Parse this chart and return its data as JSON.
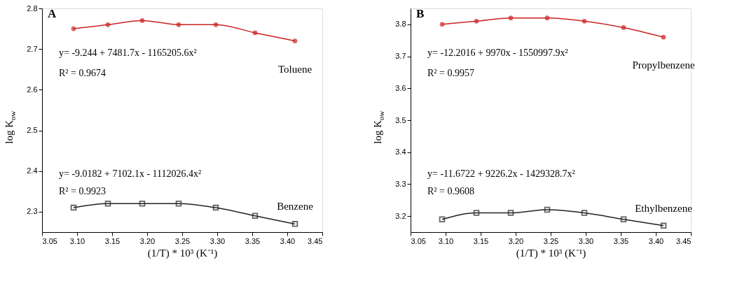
{
  "chart_data": [
    {
      "type": "line",
      "title": "A",
      "xlabel": "(1/T) * 10³ (K⁻¹)",
      "ylabel": "log K$_{ow}$",
      "x": [
        3.095,
        3.144,
        3.193,
        3.245,
        3.298,
        3.354,
        3.411
      ],
      "series": [
        {
          "name": "Toluene",
          "color": "#cc2222",
          "marker": "circle",
          "values": [
            2.75,
            2.76,
            2.77,
            2.76,
            2.76,
            2.74,
            2.72
          ]
        },
        {
          "name": "Benzene",
          "color": "#222222",
          "marker": "square",
          "values": [
            2.31,
            2.32,
            2.32,
            2.32,
            2.31,
            2.29,
            2.27
          ]
        }
      ],
      "xlim": [
        3.05,
        3.45
      ],
      "xticks": [
        3.05,
        {
          "value": 3.1,
          "label": "3.10"
        },
        3.15,
        {
          "value": 3.2,
          "label": "3.20"
        },
        3.25,
        {
          "value": 3.3,
          "label": "3.30"
        },
        3.35,
        {
          "value": 3.4,
          "label": "3.40"
        },
        3.45
      ],
      "ylim": [
        2.25,
        2.8
      ],
      "yticks": [
        2.3,
        2.4,
        2.5,
        2.6,
        2.7,
        2.8
      ],
      "annotations": [
        "y= -9.244 + 7481.7x - 1165205.6x²",
        "R² = 0.9674",
        "y= -9.0182 + 7102.1x - 1112026.4x²",
        "R² = 0.9923"
      ],
      "grid": false,
      "legend": false
    },
    {
      "type": "line",
      "title": "B",
      "xlabel": "(1/T) * 10³ (K⁻¹)",
      "ylabel": "log K$_{ow}$",
      "x": [
        3.095,
        3.144,
        3.193,
        3.245,
        3.298,
        3.354,
        3.411
      ],
      "series": [
        {
          "name": "Propylbenzene",
          "color": "#cc2222",
          "marker": "circle",
          "values": [
            3.8,
            3.81,
            3.82,
            3.82,
            3.81,
            3.79,
            3.76
          ]
        },
        {
          "name": "Ethylbenzene",
          "color": "#222222",
          "marker": "square",
          "values": [
            3.19,
            3.21,
            3.21,
            3.22,
            3.21,
            3.19,
            3.17
          ]
        }
      ],
      "xlim": [
        3.05,
        3.45
      ],
      "xticks": [
        3.05,
        {
          "value": 3.1,
          "label": "3.10"
        },
        3.15,
        {
          "value": 3.2,
          "label": "3.20"
        },
        3.25,
        {
          "value": 3.3,
          "label": "3.30"
        },
        3.35,
        {
          "value": 3.4,
          "label": "3.40"
        },
        3.45
      ],
      "ylim": [
        3.15,
        3.85
      ],
      "yticks": [
        3.2,
        3.3,
        3.4,
        3.5,
        3.6,
        3.7,
        3.8
      ],
      "annotations": [
        "y= -12.2016 + 9970x - 1550997.9x²",
        "R² = 0.9957",
        "y= -11.6722 + 9226.2x - 1429328.7x²",
        "R² = 0.9608"
      ],
      "grid": false,
      "legend": false
    }
  ]
}
